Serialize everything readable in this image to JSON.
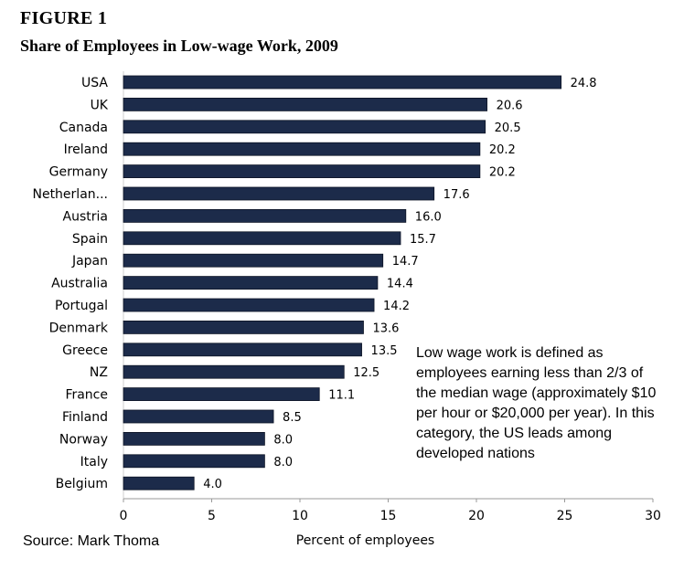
{
  "figure": {
    "label": "FIGURE 1",
    "title": "Share of Employees  in Low-wage Work, 2009"
  },
  "chart_data": {
    "type": "bar",
    "orientation": "horizontal",
    "title": "Share of Employees  in Low-wage Work, 2009",
    "xlabel": "Percent of employees",
    "ylabel": "",
    "xlim": [
      0,
      30
    ],
    "ticks": [
      0,
      5,
      10,
      15,
      20,
      25,
      30
    ],
    "categories": [
      "USA",
      "UK",
      "Canada",
      "Ireland",
      "Germany",
      "Netherlan...",
      "Austria",
      "Spain",
      "Japan",
      "Australia",
      "Portugal",
      "Denmark",
      "Greece",
      "NZ",
      "France",
      "Finland",
      "Norway",
      "Italy",
      "Belgium"
    ],
    "values": [
      24.8,
      20.6,
      20.5,
      20.2,
      20.2,
      17.6,
      16.0,
      15.7,
      14.7,
      14.4,
      14.2,
      13.6,
      13.5,
      12.5,
      11.1,
      8.5,
      8.0,
      8.0,
      4.0
    ],
    "value_labels": [
      "24.8",
      "20.6",
      "20.5",
      "20.2",
      "20.2",
      "17.6",
      "16.0",
      "15.7",
      "14.7",
      "14.4",
      "14.2",
      "13.6",
      "13.5",
      "12.5",
      "11.1",
      "8.5",
      "8.0",
      "8.0",
      "4.0"
    ],
    "bar_color": "#1c2b4a"
  },
  "annotation": {
    "text": "Low wage work is defined as employees earning less than 2/3 of the median wage (approximately $10 per hour or $20,000 per year). In this category, the US leads among developed nations"
  },
  "source": "Source:  Mark Thoma"
}
